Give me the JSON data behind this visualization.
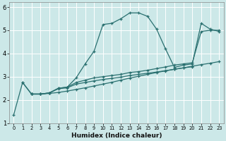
{
  "title": "",
  "xlabel": "Humidex (Indice chaleur)",
  "xlim": [
    -0.5,
    23.5
  ],
  "ylim": [
    1,
    6.2
  ],
  "yticks": [
    1,
    2,
    3,
    4,
    5,
    6
  ],
  "xticks": [
    0,
    1,
    2,
    3,
    4,
    5,
    6,
    7,
    8,
    9,
    10,
    11,
    12,
    13,
    14,
    15,
    16,
    17,
    18,
    19,
    20,
    21,
    22,
    23
  ],
  "bg_color": "#cce8e8",
  "grid_color": "#ffffff",
  "line_color": "#2a7070",
  "lines": [
    {
      "x": [
        0,
        1,
        2,
        3,
        4,
        5,
        6,
        7,
        8,
        9,
        10,
        11,
        12,
        13,
        14,
        15,
        16,
        17,
        18,
        19,
        20,
        21,
        22,
        23
      ],
      "y": [
        1.35,
        2.75,
        2.25,
        2.25,
        2.3,
        2.5,
        2.55,
        2.95,
        3.55,
        4.1,
        5.25,
        5.3,
        5.5,
        5.75,
        5.75,
        5.6,
        5.05,
        4.2,
        3.4,
        3.5,
        3.55,
        5.3,
        5.05,
        4.95
      ]
    },
    {
      "x": [
        1,
        2,
        3,
        4,
        5,
        6,
        7,
        8,
        9,
        10,
        11,
        12,
        13,
        14,
        15,
        16,
        17,
        18,
        19,
        20,
        21,
        22,
        23
      ],
      "y": [
        2.75,
        2.25,
        2.25,
        2.28,
        2.32,
        2.38,
        2.45,
        2.52,
        2.6,
        2.68,
        2.76,
        2.85,
        2.94,
        3.02,
        3.1,
        3.18,
        3.25,
        3.32,
        3.38,
        3.45,
        3.52,
        3.58,
        3.65
      ]
    },
    {
      "x": [
        2,
        3,
        4,
        5,
        6,
        7,
        8,
        9,
        10,
        11,
        12,
        13,
        14,
        15,
        16,
        17,
        18,
        19,
        20,
        21,
        22,
        23
      ],
      "y": [
        2.25,
        2.25,
        2.3,
        2.5,
        2.55,
        2.75,
        2.85,
        2.95,
        3.0,
        3.05,
        3.1,
        3.18,
        3.22,
        3.28,
        3.35,
        3.42,
        3.5,
        3.55,
        3.6,
        4.95,
        5.0,
        5.0
      ]
    },
    {
      "x": [
        2,
        3,
        4,
        5,
        6,
        7,
        8,
        9,
        10,
        11,
        12,
        13,
        14,
        15,
        16,
        17,
        18,
        19,
        20
      ],
      "y": [
        2.25,
        2.25,
        2.3,
        2.48,
        2.52,
        2.68,
        2.75,
        2.82,
        2.88,
        2.93,
        2.98,
        3.05,
        3.1,
        3.15,
        3.2,
        3.26,
        3.32,
        3.38,
        3.43
      ]
    }
  ]
}
